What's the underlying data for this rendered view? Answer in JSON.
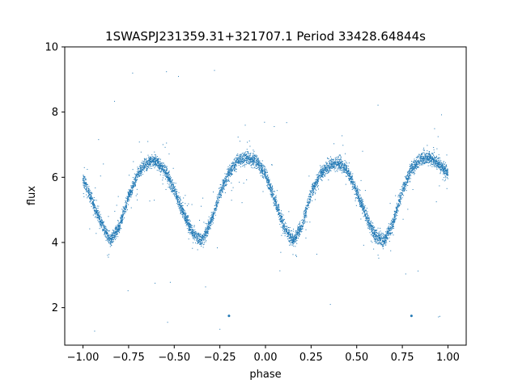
{
  "chart_data": {
    "type": "scatter",
    "title": "1SWASPJ231359.31+321707.1 Period 33428.64844s",
    "xlabel": "phase",
    "ylabel": "flux",
    "xlim": [
      -1.1,
      1.1
    ],
    "ylim": [
      0.85,
      10
    ],
    "xticks": [
      -1.0,
      -0.75,
      -0.5,
      -0.25,
      0.0,
      0.25,
      0.5,
      0.75,
      1.0
    ],
    "xtick_labels": [
      "−1.00",
      "−0.75",
      "−0.50",
      "−0.25",
      "0.00",
      "0.25",
      "0.50",
      "0.75",
      "1.00"
    ],
    "yticks": [
      2,
      4,
      6,
      8,
      10
    ],
    "ytick_labels": [
      "2",
      "4",
      "6",
      "8",
      "10"
    ],
    "grid": false,
    "marker_color": "#1f77b4",
    "series": [
      {
        "description_points": "phase-folded light curve, ~2 cycles over phase -1 to 1",
        "x": [
          -1.0,
          -0.95,
          -0.9,
          -0.85,
          -0.8,
          -0.75,
          -0.7,
          -0.65,
          -0.6,
          -0.55,
          -0.5,
          -0.45,
          -0.4,
          -0.35,
          -0.3,
          -0.25,
          -0.2,
          -0.15,
          -0.1,
          -0.05,
          0.0,
          0.05,
          0.1,
          0.15,
          0.2,
          0.25,
          0.3,
          0.35,
          0.4,
          0.45,
          0.5,
          0.55,
          0.6,
          0.65,
          0.7,
          0.75,
          0.8,
          0.85,
          0.9,
          0.95,
          1.0
        ],
        "y": [
          5.95,
          5.3,
          4.6,
          4.05,
          4.5,
          5.4,
          6.1,
          6.45,
          6.5,
          6.2,
          5.6,
          4.9,
          4.3,
          4.05,
          4.6,
          5.5,
          6.15,
          6.5,
          6.6,
          6.5,
          6.1,
          5.3,
          4.5,
          4.05,
          4.5,
          5.5,
          6.1,
          6.35,
          6.45,
          6.2,
          5.55,
          4.85,
          4.2,
          4.05,
          4.6,
          5.6,
          6.25,
          6.55,
          6.6,
          6.4,
          6.15
        ]
      }
    ],
    "outliers": [
      {
        "x": -0.2,
        "y": 1.75
      },
      {
        "x": 0.8,
        "y": 1.75
      }
    ]
  }
}
